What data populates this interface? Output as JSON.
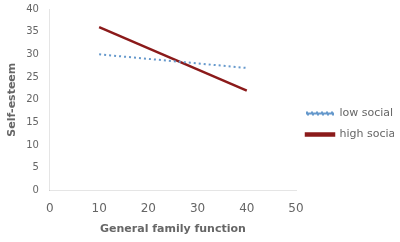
{
  "chart_data": {
    "type": "line",
    "xlabel": "General family function",
    "ylabel": "Self-esteem",
    "x": [
      10,
      40
    ],
    "series": [
      {
        "name": "low social support",
        "color": "#6699CC",
        "line_style": "dotted",
        "values": [
          30,
          27
        ]
      },
      {
        "name": "high social support",
        "color": "#8B1A1A",
        "line_style": "solid",
        "values": [
          36,
          22
        ]
      }
    ],
    "xlim": [
      0,
      50
    ],
    "ylim": [
      0,
      40
    ],
    "xticks": [
      0,
      10,
      20,
      30,
      40,
      50
    ],
    "yticks": [
      0,
      5,
      10,
      15,
      20,
      25,
      30,
      35,
      40
    ],
    "grid": false,
    "legend": "right"
  }
}
